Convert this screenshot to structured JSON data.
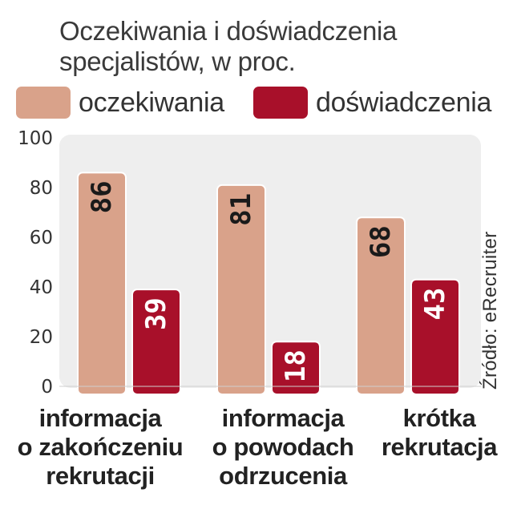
{
  "chart_data": {
    "type": "bar",
    "title": "Oczekiwania i doświadczenia specjalistów, w proc.",
    "categories": [
      "informacja o zakończeniu rekrutacji",
      "informacja o powodach odrzucenia",
      "krótka rekrutacja"
    ],
    "categories_lines": [
      [
        "informacja",
        "o zakończeniu",
        "rekrutacji"
      ],
      [
        "informacja",
        "o powodach",
        "odrzucenia"
      ],
      [
        "krótka",
        "rekrutacja"
      ]
    ],
    "series": [
      {
        "name": "oczekiwania",
        "color": "#d9a28a",
        "values": [
          86,
          81,
          68
        ]
      },
      {
        "name": "doświadczenia",
        "color": "#a8102a",
        "values": [
          39,
          18,
          43
        ]
      }
    ],
    "ylim": [
      0,
      100
    ],
    "yticks": [
      0,
      20,
      40,
      60,
      80,
      100
    ],
    "grid": false,
    "legend": "top-left",
    "source": "Źródło: eRecruiter",
    "colors": {
      "plot_background": "#eeeeee",
      "label_on_light": "#1a1a1a",
      "label_on_dark": "#ffffff"
    }
  }
}
